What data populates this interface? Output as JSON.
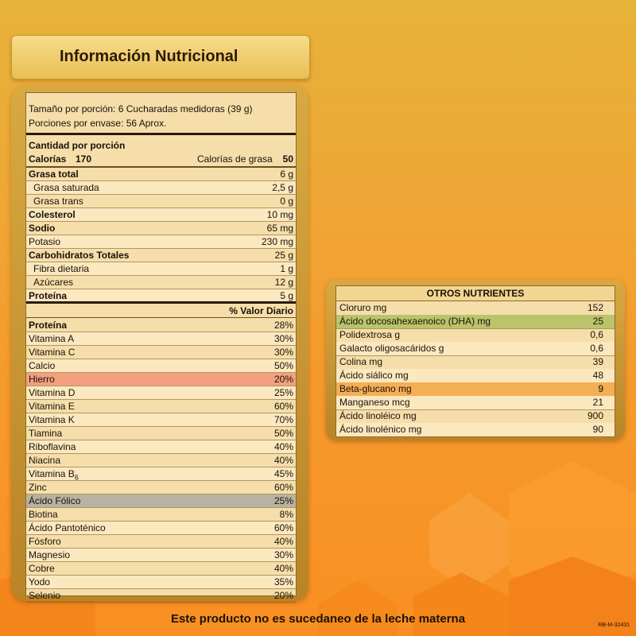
{
  "header": {
    "title": "Información Nutricional"
  },
  "serving": {
    "size": "Tamaño por porción: 6 Cucharadas medidoras (39 g)",
    "per_container": "Porciones por envase: 56 Aprox."
  },
  "amount_header": "Cantidad por porción",
  "calories": {
    "label": "Calorías",
    "value": "170",
    "fat_label": "Calorías de grasa",
    "fat_value": "50"
  },
  "nutrients": [
    {
      "label": "Grasa total",
      "value": "6 g"
    },
    {
      "label": "Grasa saturada",
      "value": "2,5 g"
    },
    {
      "label": "Grasa trans",
      "value": "0 g"
    },
    {
      "label": "Colesterol",
      "value": "10 mg"
    },
    {
      "label": "Sodio",
      "value": "65 mg"
    },
    {
      "label": "Potasio",
      "value": "230 mg"
    },
    {
      "label": "Carbohidratos Totales",
      "value": "25 g"
    },
    {
      "label": "Fibra dietaria",
      "value": "1 g"
    },
    {
      "label": "Azúcares",
      "value": "12 g"
    },
    {
      "label": "Proteína",
      "value": "5 g"
    }
  ],
  "dv_header": "% Valor Diario",
  "daily_values": [
    {
      "label": "Proteína",
      "value": "28%"
    },
    {
      "label": "Vitamina A",
      "value": "30%"
    },
    {
      "label": "Vitamina C",
      "value": "30%"
    },
    {
      "label": "Calcio",
      "value": "50%"
    },
    {
      "label": "Hierro",
      "value": "20%"
    },
    {
      "label": "Vitamina D",
      "value": "25%"
    },
    {
      "label": "Vitamina E",
      "value": "60%"
    },
    {
      "label": "Vitamina K",
      "value": "70%"
    },
    {
      "label": "Tiamina",
      "value": "50%"
    },
    {
      "label": "Riboflavina",
      "value": "40%"
    },
    {
      "label": "Niacina",
      "value": "40%"
    },
    {
      "label": "Vitamina B",
      "sub": "6",
      "value": "45%"
    },
    {
      "label": "Zinc",
      "value": "60%"
    },
    {
      "label": "Ácido Fólico",
      "value": "25%"
    },
    {
      "label": "Biotina",
      "value": "8%"
    },
    {
      "label": "Ácido Pantoténico",
      "value": "60%"
    },
    {
      "label": "Fósforo",
      "value": "40%"
    },
    {
      "label": "Magnesio",
      "value": "30%"
    },
    {
      "label": "Cobre",
      "value": "40%"
    },
    {
      "label": "Yodo",
      "value": "35%"
    },
    {
      "label": "Selenio",
      "value": "20%"
    }
  ],
  "other": {
    "title": "OTROS NUTRIENTES",
    "items": [
      {
        "label": "Cloruro mg",
        "value": "152"
      },
      {
        "label": "Ácido docosahexaenoico (DHA) mg",
        "value": "25"
      },
      {
        "label": "Polidextrosa g",
        "value": "0,6"
      },
      {
        "label": "Galacto oligosacáridos g",
        "value": "0,6"
      },
      {
        "label": "Colina mg",
        "value": "39"
      },
      {
        "label": "Ácido siálico mg",
        "value": "48"
      },
      {
        "label": "Beta-glucano mg",
        "value": "9"
      },
      {
        "label": "Manganeso mcg",
        "value": "21"
      },
      {
        "label": "Ácido linoléico mg",
        "value": "900"
      },
      {
        "label": "Ácido linolénico mg",
        "value": "90"
      }
    ]
  },
  "footer": "Este producto no es sucedaneo de la leche materna",
  "code": "RB-M-32431",
  "colors": {
    "highlight_red": "#f3a080",
    "highlight_gray": "#b9b2a2",
    "highlight_green": "#b9c46b",
    "highlight_orange": "#f4ae55"
  }
}
